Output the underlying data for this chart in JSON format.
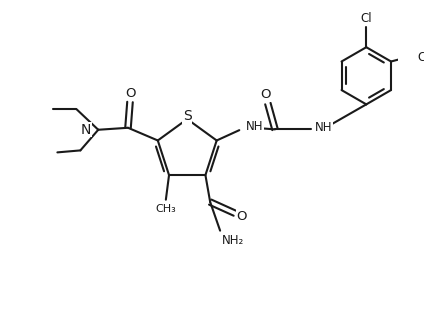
{
  "background_color": "#ffffff",
  "line_color": "#1a1a1a",
  "lw": 1.5,
  "fs": 8.5,
  "figsize": [
    4.24,
    3.12
  ],
  "dpi": 100,
  "xlim": [
    0,
    10
  ],
  "ylim": [
    0,
    7.4
  ]
}
